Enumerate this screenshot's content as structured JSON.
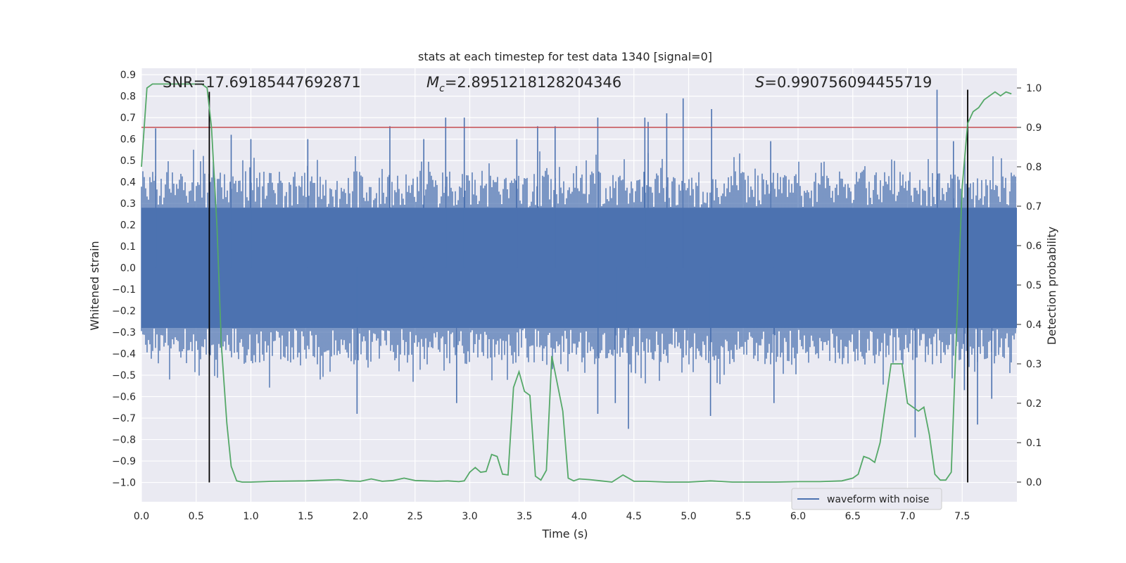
{
  "chart_data": {
    "type": "line",
    "title": "stats at each timestep for test data 1340 [signal=0]",
    "xlabel": "Time (s)",
    "ylabel": "Whitened strain",
    "ylabel_right": "Detection probability",
    "xlim": [
      0.0,
      8.0
    ],
    "ylim": [
      -1.09,
      0.93
    ],
    "ylim_right": [
      -0.05,
      1.05
    ],
    "x_ticks": [
      "0.0",
      "0.5",
      "1.0",
      "1.5",
      "2.0",
      "2.5",
      "3.0",
      "3.5",
      "4.0",
      "4.5",
      "5.0",
      "5.5",
      "6.0",
      "6.5",
      "7.0",
      "7.5"
    ],
    "y_ticks": [
      "0.9",
      "0.8",
      "0.7",
      "0.6",
      "0.5",
      "0.4",
      "0.3",
      "0.2",
      "0.1",
      "0.0",
      "−0.1",
      "−0.2",
      "−0.3",
      "−0.4",
      "−0.5",
      "−0.6",
      "−0.7",
      "−0.8",
      "−0.9",
      "−1.0"
    ],
    "y_ticks_right": [
      "1.0",
      "0.9",
      "0.8",
      "0.7",
      "0.6",
      "0.5",
      "0.4",
      "0.3",
      "0.2",
      "0.1",
      "0.0"
    ],
    "grid": true,
    "legend_position": "lower-right",
    "annotations": {
      "snr": "SNR=17.69185447692871",
      "mc_symbol": "M",
      "mc_sub": "c",
      "mc_value": "=2.8951218128204346",
      "s_symbol": "S",
      "s_value": "=0.990756094455719"
    },
    "series": [
      {
        "name": "waveform with noise",
        "axis": "left",
        "color": "#4c72b0",
        "kind": "noise",
        "core_band": [
          -0.28,
          0.28
        ],
        "typical_envelope": [
          -0.45,
          0.45
        ],
        "spikes": [
          {
            "x": 0.13,
            "y": 0.65
          },
          {
            "x": 0.82,
            "y": 0.62
          },
          {
            "x": 1.0,
            "y": 0.6
          },
          {
            "x": 1.52,
            "y": 0.6
          },
          {
            "x": 2.27,
            "y": 0.66
          },
          {
            "x": 2.58,
            "y": 0.6
          },
          {
            "x": 2.78,
            "y": 0.7
          },
          {
            "x": 2.95,
            "y": 0.7
          },
          {
            "x": 3.43,
            "y": 0.6
          },
          {
            "x": 3.62,
            "y": 0.66
          },
          {
            "x": 3.78,
            "y": 0.66
          },
          {
            "x": 4.17,
            "y": 0.7
          },
          {
            "x": 4.6,
            "y": 0.7
          },
          {
            "x": 4.63,
            "y": 0.68
          },
          {
            "x": 4.8,
            "y": 0.72
          },
          {
            "x": 4.95,
            "y": 0.79
          },
          {
            "x": 5.21,
            "y": 0.74
          },
          {
            "x": 5.75,
            "y": 0.59
          },
          {
            "x": 7.27,
            "y": 0.83
          },
          {
            "x": 7.42,
            "y": 0.59
          },
          {
            "x": 1.97,
            "y": -0.68
          },
          {
            "x": 2.88,
            "y": -0.63
          },
          {
            "x": 4.17,
            "y": -0.68
          },
          {
            "x": 4.33,
            "y": -0.63
          },
          {
            "x": 4.45,
            "y": -0.75
          },
          {
            "x": 5.2,
            "y": -0.69
          },
          {
            "x": 5.78,
            "y": -0.63
          },
          {
            "x": 7.07,
            "y": -0.79
          },
          {
            "x": 7.64,
            "y": -0.73
          },
          {
            "x": 7.77,
            "y": -0.61
          },
          {
            "x": 7.52,
            "y": -0.57
          }
        ]
      },
      {
        "name": "",
        "axis": "right",
        "color": "#55a868",
        "x": [
          0.0,
          0.05,
          0.1,
          0.15,
          0.2,
          0.3,
          0.4,
          0.5,
          0.55,
          0.6,
          0.64,
          0.69,
          0.73,
          0.78,
          0.82,
          0.87,
          0.92,
          1.0,
          1.2,
          1.5,
          1.7,
          1.8,
          1.9,
          2.0,
          2.1,
          2.2,
          2.3,
          2.4,
          2.5,
          2.6,
          2.7,
          2.8,
          2.9,
          2.95,
          3.0,
          3.05,
          3.1,
          3.15,
          3.2,
          3.25,
          3.3,
          3.35,
          3.4,
          3.45,
          3.5,
          3.55,
          3.6,
          3.65,
          3.7,
          3.75,
          3.8,
          3.85,
          3.9,
          3.95,
          4.0,
          4.1,
          4.2,
          4.3,
          4.4,
          4.45,
          4.5,
          4.6,
          4.8,
          5.0,
          5.2,
          5.4,
          5.6,
          5.8,
          6.0,
          6.2,
          6.4,
          6.5,
          6.55,
          6.6,
          6.65,
          6.7,
          6.75,
          6.8,
          6.85,
          6.9,
          6.95,
          7.0,
          7.05,
          7.1,
          7.15,
          7.2,
          7.25,
          7.3,
          7.35,
          7.4,
          7.45,
          7.5,
          7.55,
          7.6,
          7.65,
          7.7,
          7.75,
          7.8,
          7.85,
          7.9,
          7.95
        ],
        "values": [
          0.8,
          1.0,
          1.01,
          1.01,
          1.01,
          1.01,
          1.01,
          1.01,
          1.01,
          1.0,
          0.9,
          0.65,
          0.35,
          0.15,
          0.04,
          0.003,
          0.0,
          0.0,
          0.002,
          0.003,
          0.005,
          0.006,
          0.003,
          0.002,
          0.008,
          0.002,
          0.004,
          0.01,
          0.004,
          0.003,
          0.002,
          0.003,
          0.001,
          0.003,
          0.025,
          0.037,
          0.025,
          0.027,
          0.07,
          0.065,
          0.02,
          0.018,
          0.24,
          0.28,
          0.23,
          0.22,
          0.015,
          0.005,
          0.03,
          0.32,
          0.25,
          0.18,
          0.01,
          0.003,
          0.008,
          0.006,
          0.003,
          0.0,
          0.018,
          0.01,
          0.002,
          0.002,
          0.0,
          0.0,
          0.003,
          0.0,
          0.0,
          0.0,
          0.001,
          0.001,
          0.003,
          0.01,
          0.02,
          0.065,
          0.06,
          0.05,
          0.1,
          0.2,
          0.3,
          0.3,
          0.3,
          0.2,
          0.19,
          0.18,
          0.19,
          0.12,
          0.02,
          0.005,
          0.005,
          0.025,
          0.4,
          0.75,
          0.91,
          0.94,
          0.95,
          0.97,
          0.98,
          0.99,
          0.98,
          0.99,
          0.985
        ]
      }
    ],
    "threshold": {
      "axis": "right",
      "value": 0.9,
      "color": "#c44e52"
    },
    "vlines": [
      {
        "x": 0.62,
        "y_bottom": -1.0,
        "y_top": 0.82,
        "color": "#000000"
      },
      {
        "x": 7.55,
        "y_bottom": -1.0,
        "y_top": 0.83,
        "color": "#000000"
      }
    ],
    "legend": [
      {
        "label": "waveform with noise",
        "color": "#4c72b0"
      }
    ]
  }
}
